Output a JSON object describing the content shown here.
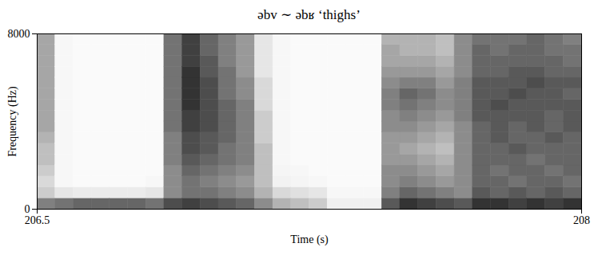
{
  "chart_data": {
    "type": "heatmap",
    "title": "əbv ∼ əbʁ ‘thighs’",
    "x_label": "Time (s)",
    "y_label": "Frequency (Hz)",
    "xlim": [
      206.5,
      208
    ],
    "ylim": [
      0,
      8000
    ],
    "xticks": [
      206.5,
      208
    ],
    "yticks": [
      0,
      8000
    ],
    "zlim": [
      0,
      1
    ],
    "x_bins": [
      206.5,
      206.55,
      206.6,
      206.65,
      206.7,
      206.75,
      206.8,
      206.85,
      206.9,
      206.95,
      207,
      207.05,
      207.1,
      207.15,
      207.2,
      207.25,
      207.3,
      207.35,
      207.4,
      207.45,
      207.5,
      207.55,
      207.6,
      207.65,
      207.7,
      207.75,
      207.8,
      207.85,
      207.9,
      207.95,
      208
    ],
    "y_bins": [
      0,
      500,
      1000,
      1500,
      2000,
      2500,
      3000,
      3500,
      4000,
      4500,
      5000,
      5500,
      6000,
      6500,
      7000,
      7500,
      8000
    ],
    "intensity": [
      [
        0.5,
        0.2,
        0.15,
        0.2,
        0.25,
        0.25,
        0.3,
        0.35,
        0.35,
        0.35,
        0.35,
        0.35,
        0.35,
        0.35,
        0.35,
        0.35
      ],
      [
        0.55,
        0.1,
        0.03,
        0.03,
        0.03,
        0.03,
        0.03,
        0.03,
        0.03,
        0.03,
        0.03,
        0.03,
        0.03,
        0.03,
        0.03,
        0.03
      ],
      [
        0.6,
        0.08,
        0.02,
        0.02,
        0.02,
        0.02,
        0.02,
        0.02,
        0.02,
        0.02,
        0.02,
        0.02,
        0.02,
        0.02,
        0.02,
        0.02
      ],
      [
        0.6,
        0.08,
        0.02,
        0.02,
        0.02,
        0.02,
        0.02,
        0.02,
        0.02,
        0.02,
        0.02,
        0.02,
        0.02,
        0.02,
        0.02,
        0.02
      ],
      [
        0.6,
        0.08,
        0.02,
        0.02,
        0.02,
        0.02,
        0.02,
        0.02,
        0.02,
        0.02,
        0.02,
        0.02,
        0.02,
        0.02,
        0.02,
        0.02
      ],
      [
        0.6,
        0.08,
        0.02,
        0.02,
        0.02,
        0.02,
        0.02,
        0.02,
        0.02,
        0.02,
        0.02,
        0.02,
        0.02,
        0.02,
        0.02,
        0.02
      ],
      [
        0.55,
        0.1,
        0.03,
        0.02,
        0.02,
        0.02,
        0.02,
        0.02,
        0.02,
        0.02,
        0.02,
        0.02,
        0.02,
        0.02,
        0.02,
        0.02
      ],
      [
        0.7,
        0.45,
        0.45,
        0.45,
        0.5,
        0.5,
        0.5,
        0.55,
        0.55,
        0.55,
        0.55,
        0.55,
        0.55,
        0.55,
        0.55,
        0.55
      ],
      [
        0.75,
        0.55,
        0.55,
        0.6,
        0.65,
        0.7,
        0.7,
        0.75,
        0.75,
        0.8,
        0.8,
        0.8,
        0.8,
        0.75,
        0.75,
        0.75
      ],
      [
        0.7,
        0.55,
        0.5,
        0.55,
        0.6,
        0.65,
        0.65,
        0.7,
        0.7,
        0.7,
        0.7,
        0.7,
        0.65,
        0.65,
        0.6,
        0.6
      ],
      [
        0.65,
        0.5,
        0.45,
        0.5,
        0.55,
        0.55,
        0.6,
        0.6,
        0.6,
        0.6,
        0.55,
        0.55,
        0.55,
        0.5,
        0.5,
        0.5
      ],
      [
        0.6,
        0.45,
        0.4,
        0.45,
        0.5,
        0.5,
        0.5,
        0.5,
        0.5,
        0.5,
        0.45,
        0.45,
        0.4,
        0.4,
        0.4,
        0.4
      ],
      [
        0.45,
        0.3,
        0.25,
        0.25,
        0.25,
        0.25,
        0.2,
        0.2,
        0.2,
        0.15,
        0.15,
        0.15,
        0.1,
        0.1,
        0.1,
        0.1
      ],
      [
        0.3,
        0.15,
        0.05,
        0.04,
        0.03,
        0.03,
        0.03,
        0.03,
        0.03,
        0.03,
        0.03,
        0.03,
        0.03,
        0.03,
        0.03,
        0.03
      ],
      [
        0.25,
        0.12,
        0.04,
        0.03,
        0.02,
        0.02,
        0.02,
        0.02,
        0.02,
        0.02,
        0.02,
        0.02,
        0.02,
        0.02,
        0.02,
        0.02
      ],
      [
        0.2,
        0.1,
        0.03,
        0.02,
        0.02,
        0.02,
        0.02,
        0.02,
        0.02,
        0.02,
        0.02,
        0.02,
        0.02,
        0.02,
        0.02,
        0.02
      ],
      [
        0.06,
        0.03,
        0.02,
        0.02,
        0.02,
        0.02,
        0.02,
        0.02,
        0.02,
        0.02,
        0.02,
        0.02,
        0.02,
        0.02,
        0.02,
        0.02
      ],
      [
        0.06,
        0.03,
        0.02,
        0.02,
        0.02,
        0.02,
        0.02,
        0.02,
        0.02,
        0.02,
        0.02,
        0.02,
        0.02,
        0.02,
        0.02,
        0.02
      ],
      [
        0.06,
        0.03,
        0.02,
        0.02,
        0.02,
        0.02,
        0.02,
        0.02,
        0.02,
        0.02,
        0.02,
        0.02,
        0.02,
        0.02,
        0.02,
        0.02
      ],
      [
        0.65,
        0.5,
        0.45,
        0.45,
        0.4,
        0.4,
        0.4,
        0.45,
        0.45,
        0.5,
        0.5,
        0.45,
        0.4,
        0.35,
        0.35,
        0.3
      ],
      [
        0.8,
        0.6,
        0.5,
        0.45,
        0.4,
        0.35,
        0.4,
        0.45,
        0.5,
        0.55,
        0.6,
        0.5,
        0.4,
        0.35,
        0.3,
        0.3
      ],
      [
        0.75,
        0.55,
        0.45,
        0.4,
        0.35,
        0.3,
        0.35,
        0.4,
        0.45,
        0.5,
        0.55,
        0.5,
        0.4,
        0.35,
        0.3,
        0.3
      ],
      [
        0.7,
        0.5,
        0.4,
        0.35,
        0.3,
        0.25,
        0.3,
        0.35,
        0.4,
        0.45,
        0.45,
        0.4,
        0.35,
        0.3,
        0.25,
        0.25
      ],
      [
        0.65,
        0.45,
        0.45,
        0.45,
        0.45,
        0.45,
        0.45,
        0.45,
        0.5,
        0.5,
        0.5,
        0.5,
        0.45,
        0.45,
        0.45,
        0.45
      ],
      [
        0.8,
        0.65,
        0.6,
        0.6,
        0.6,
        0.6,
        0.6,
        0.6,
        0.65,
        0.65,
        0.65,
        0.65,
        0.6,
        0.6,
        0.6,
        0.55
      ],
      [
        0.8,
        0.6,
        0.6,
        0.55,
        0.6,
        0.6,
        0.65,
        0.65,
        0.65,
        0.7,
        0.65,
        0.65,
        0.6,
        0.6,
        0.55,
        0.55
      ],
      [
        0.75,
        0.65,
        0.55,
        0.6,
        0.6,
        0.65,
        0.6,
        0.6,
        0.65,
        0.65,
        0.7,
        0.65,
        0.65,
        0.6,
        0.6,
        0.55
      ],
      [
        0.8,
        0.6,
        0.6,
        0.6,
        0.55,
        0.6,
        0.6,
        0.65,
        0.65,
        0.65,
        0.65,
        0.7,
        0.65,
        0.6,
        0.6,
        0.6
      ],
      [
        0.75,
        0.65,
        0.6,
        0.55,
        0.6,
        0.6,
        0.65,
        0.6,
        0.6,
        0.65,
        0.65,
        0.65,
        0.6,
        0.6,
        0.55,
        0.55
      ],
      [
        0.8,
        0.6,
        0.55,
        0.6,
        0.6,
        0.6,
        0.6,
        0.65,
        0.65,
        0.65,
        0.6,
        0.65,
        0.6,
        0.55,
        0.55,
        0.5
      ]
    ]
  }
}
